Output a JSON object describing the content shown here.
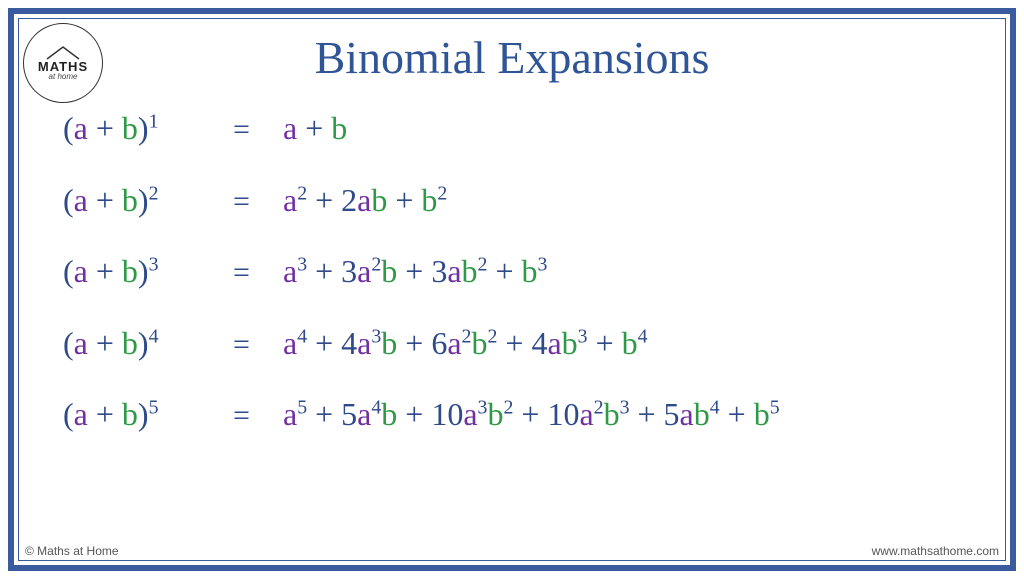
{
  "title": "Binomial Expansions",
  "colors": {
    "frame": "#3a5ba0",
    "title": "#2f5597",
    "operator": "#2f4a8a",
    "var_a": "#7030a0",
    "var_b": "#2e9a47",
    "background": "#ffffff"
  },
  "typography": {
    "title_fontsize": 46,
    "equation_fontsize": 32,
    "font_family": "Georgia, serif"
  },
  "logo": {
    "top_text": "MATHS",
    "bottom_text": "at home"
  },
  "footer": {
    "left": "© Maths at Home",
    "right": "www.mathsathome.com"
  },
  "equals": "=",
  "rows": [
    {
      "power": "1",
      "rhs": [
        {
          "t": "a",
          "txt": "a"
        },
        {
          "t": "op",
          "txt": " + "
        },
        {
          "t": "b",
          "txt": "b"
        }
      ]
    },
    {
      "power": "2",
      "rhs": [
        {
          "t": "a",
          "txt": "a"
        },
        {
          "t": "op",
          "sup": "2"
        },
        {
          "t": "op",
          "txt": " + "
        },
        {
          "t": "op",
          "txt": "2"
        },
        {
          "t": "a",
          "txt": "a"
        },
        {
          "t": "b",
          "txt": "b"
        },
        {
          "t": "op",
          "txt": " + "
        },
        {
          "t": "b",
          "txt": "b"
        },
        {
          "t": "op",
          "sup": "2"
        }
      ]
    },
    {
      "power": "3",
      "rhs": [
        {
          "t": "a",
          "txt": "a"
        },
        {
          "t": "op",
          "sup": "3"
        },
        {
          "t": "op",
          "txt": " + "
        },
        {
          "t": "op",
          "txt": "3"
        },
        {
          "t": "a",
          "txt": "a"
        },
        {
          "t": "op",
          "sup": "2"
        },
        {
          "t": "b",
          "txt": "b"
        },
        {
          "t": "op",
          "txt": " + "
        },
        {
          "t": "op",
          "txt": "3"
        },
        {
          "t": "a",
          "txt": "a"
        },
        {
          "t": "b",
          "txt": "b"
        },
        {
          "t": "op",
          "sup": "2"
        },
        {
          "t": "op",
          "txt": " + "
        },
        {
          "t": "b",
          "txt": "b"
        },
        {
          "t": "op",
          "sup": "3"
        }
      ]
    },
    {
      "power": "4",
      "rhs": [
        {
          "t": "a",
          "txt": "a"
        },
        {
          "t": "op",
          "sup": "4"
        },
        {
          "t": "op",
          "txt": " + "
        },
        {
          "t": "op",
          "txt": "4"
        },
        {
          "t": "a",
          "txt": "a"
        },
        {
          "t": "op",
          "sup": "3"
        },
        {
          "t": "b",
          "txt": "b"
        },
        {
          "t": "op",
          "txt": " + "
        },
        {
          "t": "op",
          "txt": "6"
        },
        {
          "t": "a",
          "txt": "a"
        },
        {
          "t": "op",
          "sup": "2"
        },
        {
          "t": "b",
          "txt": "b"
        },
        {
          "t": "op",
          "sup": "2"
        },
        {
          "t": "op",
          "txt": " + "
        },
        {
          "t": "op",
          "txt": "4"
        },
        {
          "t": "a",
          "txt": "a"
        },
        {
          "t": "b",
          "txt": "b"
        },
        {
          "t": "op",
          "sup": "3"
        },
        {
          "t": "op",
          "txt": " + "
        },
        {
          "t": "b",
          "txt": "b"
        },
        {
          "t": "op",
          "sup": "4"
        }
      ]
    },
    {
      "power": "5",
      "rhs": [
        {
          "t": "a",
          "txt": "a"
        },
        {
          "t": "op",
          "sup": "5"
        },
        {
          "t": "op",
          "txt": " + "
        },
        {
          "t": "op",
          "txt": "5"
        },
        {
          "t": "a",
          "txt": "a"
        },
        {
          "t": "op",
          "sup": "4"
        },
        {
          "t": "b",
          "txt": "b"
        },
        {
          "t": "op",
          "txt": " + "
        },
        {
          "t": "op",
          "txt": "10"
        },
        {
          "t": "a",
          "txt": "a"
        },
        {
          "t": "op",
          "sup": "3"
        },
        {
          "t": "b",
          "txt": "b"
        },
        {
          "t": "op",
          "sup": "2"
        },
        {
          "t": "op",
          "txt": " + "
        },
        {
          "t": "op",
          "txt": "10"
        },
        {
          "t": "a",
          "txt": "a"
        },
        {
          "t": "op",
          "sup": "2"
        },
        {
          "t": "b",
          "txt": "b"
        },
        {
          "t": "op",
          "sup": "3"
        },
        {
          "t": "op",
          "txt": " + "
        },
        {
          "t": "op",
          "txt": "5"
        },
        {
          "t": "a",
          "txt": "a"
        },
        {
          "t": "b",
          "txt": "b"
        },
        {
          "t": "op",
          "sup": "4"
        },
        {
          "t": "op",
          "txt": " + "
        },
        {
          "t": "b",
          "txt": "b"
        },
        {
          "t": "op",
          "sup": "5"
        }
      ]
    }
  ]
}
